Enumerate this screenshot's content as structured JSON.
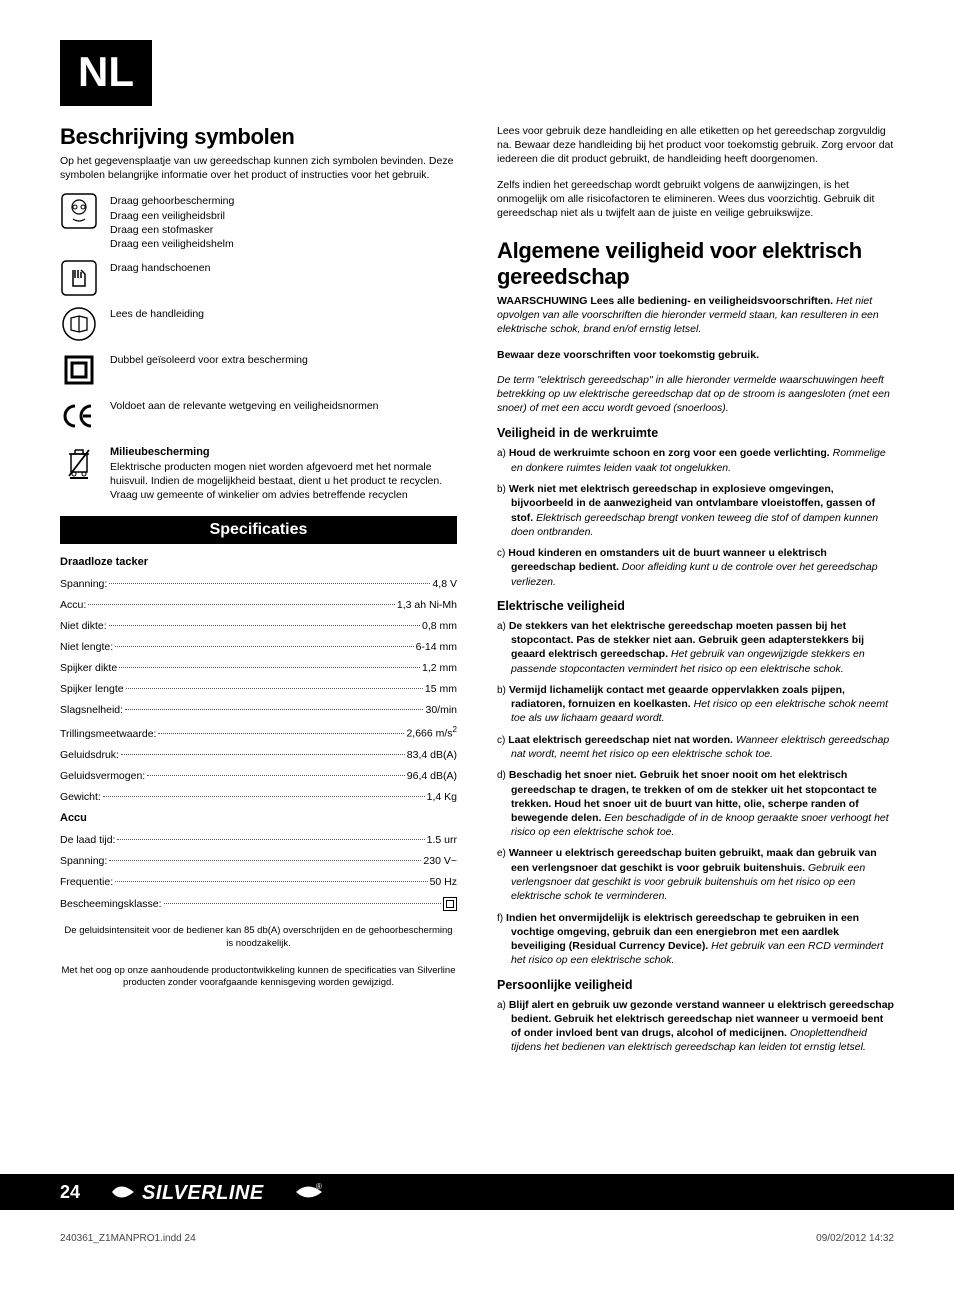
{
  "badge": "NL",
  "left": {
    "symbols_title": "Beschrijving symbolen",
    "symbols_intro": "Op het gegevensplaatje van uw gereedschap kunnen zich symbolen bevinden. Deze symbolen belangrijke informatie over het product of instructies voor het gebruik.",
    "rows": [
      {
        "lines": [
          "Draag gehoorbescherming",
          "Draag een veiligheidsbril",
          "Draag een stofmasker",
          "Draag een veiligheidshelm"
        ],
        "icon": "ppe"
      },
      {
        "lines": [
          "Draag handschoenen"
        ],
        "icon": "gloves"
      },
      {
        "lines": [
          "Lees de handleiding"
        ],
        "icon": "manual"
      },
      {
        "lines": [
          "Dubbel geïsoleerd voor extra bescherming"
        ],
        "icon": "class2"
      },
      {
        "lines": [
          "Voldoet aan de relevante wetgeving en veiligheidsnormen"
        ],
        "icon": "ce"
      },
      {
        "head": "Milieubescherming",
        "lines": [
          "Elektrische producten mogen niet worden afgevoerd met het normale huisvuil. Indien de mogelijkheid bestaat, dient u het product te recyclen. Vraag uw gemeente of winkelier om advies betreffende recyclen"
        ],
        "icon": "weee"
      }
    ],
    "spec_title": "Specificaties",
    "spec_group1": "Draadloze tacker",
    "specs1": [
      {
        "label": "Spanning:",
        "value": "4,8 V"
      },
      {
        "label": "Accu:",
        "value": "1,3 ah Ni-Mh"
      },
      {
        "label": "Niet dikte:",
        "value": "0,8 mm"
      },
      {
        "label": "Niet lengte:",
        "value": "6-14 mm"
      },
      {
        "label": "Spijker dikte",
        "value": "1,2 mm"
      },
      {
        "label": "Spijker lengte",
        "value": "15 mm"
      },
      {
        "label": "Slagsnelheid:",
        "value": "30/min"
      },
      {
        "label": "Trillingsmeetwaarde:",
        "value": "2,666 m/s²"
      },
      {
        "label": "Geluidsdruk:",
        "value": "83,4 dB(A)"
      },
      {
        "label": "Geluidsvermogen:",
        "value": "96,4 dB(A)"
      },
      {
        "label": "Gewicht:",
        "value": "1,4 Kg"
      }
    ],
    "spec_group2": "Accu",
    "specs2": [
      {
        "label": "De laad tijd:",
        "value": "1.5 urr"
      },
      {
        "label": "Spanning:",
        "value": "230 V~"
      },
      {
        "label": "Frequentie:",
        "value": "50 Hz"
      },
      {
        "label": "Bescheemingsklasse:",
        "value": "__CLASS2__"
      }
    ],
    "note1": "De geluidsintensiteit voor de bediener kan 85 db(A) overschrijden en de gehoorbescherming is noodzakelijk.",
    "note2": "Met het oog op onze aanhoudende productontwikkeling kunnen de specificaties van Silverline producten zonder voorafgaande kennisgeving worden gewijzigd."
  },
  "right": {
    "intro1": "Lees voor gebruik deze handleiding en alle etiketten op het gereedschap zorgvuldig na. Bewaar deze handleiding bij het product voor toekomstig gebruik. Zorg ervoor dat iedereen die dit product gebruikt, de handleiding heeft doorgenomen.",
    "intro2": "Zelfs indien het gereedschap wordt gebruikt volgens de aanwijzingen, is het onmogelijk om alle risicofactoren te elimineren. Wees dus voorzichtig. Gebruik dit gereedschap niet als u twijfelt aan de juiste en veilige gebruikswijze.",
    "title": "Algemene veiligheid voor elektrisch gereedschap",
    "warn_bold": "WAARSCHUWING Lees alle bediening- en veiligheidsvoorschriften.",
    "warn_italic": "Het niet opvolgen van alle voorschriften die hieronder vermeld staan, kan resulteren in een elektrische schok, brand en/of ernstig letsel.",
    "keep": "Bewaar deze voorschriften voor toekomstig gebruik.",
    "term_italic": "De term \"elektrisch gereedschap\" in alle hieronder vermelde waarschuwingen heeft betrekking op uw elektrische gereedschap dat op de stroom is aangesloten (met een snoer) of met een accu wordt gevoed (snoerloos).",
    "sections": [
      {
        "head": "Veiligheid in de werkruimte",
        "items": [
          {
            "letter": "a)",
            "bold": "Houd de werkruimte schoon en zorg voor een goede verlichting.",
            "italic": "Rommelige en donkere ruimtes leiden vaak tot ongelukken."
          },
          {
            "letter": "b)",
            "bold": "Werk niet met elektrisch gereedschap in explosieve omgevingen, bijvoorbeeld in de aanwezigheid van ontvlambare vloeistoffen, gassen of stof.",
            "italic": "Elektrisch gereedschap brengt vonken teweeg die stof of dampen kunnen doen ontbranden."
          },
          {
            "letter": "c)",
            "bold": "Houd kinderen en omstanders uit de buurt wanneer u elektrisch gereedschap bedient.",
            "italic": "Door afleiding kunt u de controle over het gereedschap verliezen."
          }
        ]
      },
      {
        "head": "Elektrische veiligheid",
        "items": [
          {
            "letter": "a)",
            "bold": "De stekkers van het elektrische gereedschap moeten passen bij het stopcontact. Pas de stekker niet aan. Gebruik geen adapterstekkers bij geaard elektrisch gereedschap.",
            "italic": "Het gebruik van ongewijzigde stekkers en passende stopcontacten vermindert het risico op een elektrische schok."
          },
          {
            "letter": "b)",
            "bold": "Vermijd lichamelijk contact met geaarde oppervlakken zoals pijpen, radiatoren, fornuizen en koelkasten.",
            "italic": "Het risico op een elektrische schok neemt toe als uw lichaam geaard wordt."
          },
          {
            "letter": "c)",
            "bold": "Laat elektrisch gereedschap niet nat worden.",
            "italic": "Wanneer elektrisch gereedschap nat wordt, neemt het risico op een elektrische schok toe."
          },
          {
            "letter": "d)",
            "bold": "Beschadig het snoer niet. Gebruik het snoer nooit om het elektrisch gereedschap te dragen, te trekken of om de stekker uit het stopcontact te trekken. Houd het snoer uit de buurt van hitte, olie, scherpe randen of bewegende delen.",
            "italic": "Een beschadigde of in de knoop geraakte snoer verhoogt het risico op een elektrische schok toe."
          },
          {
            "letter": "e)",
            "bold": "Wanneer u elektrisch gereedschap buiten gebruikt, maak dan gebruik van een verlengsnoer dat geschikt is voor gebruik buitenshuis.",
            "italic": "Gebruik een verlengsnoer dat geschikt is voor gebruik buitenshuis om het risico op een elektrische schok te verminderen."
          },
          {
            "letter": "f)",
            "bold": "Indien het onvermijdelijk is elektrisch gereedschap te gebruiken in een vochtige omgeving, gebruik dan een energiebron met een aardlek beveiliging (Residual Currency Device).",
            "italic": "Het gebruik van een RCD vermindert het risico op een elektrische schok."
          }
        ]
      },
      {
        "head": "Persoonlijke veiligheid",
        "items": [
          {
            "letter": "a)",
            "bold": "Blijf alert en gebruik uw gezonde verstand wanneer u elektrisch gereedschap bedient. Gebruik het elektrisch gereedschap niet wanneer u vermoeid bent of onder invloed bent van drugs, alcohol of medicijnen.",
            "italic": "Onoplettendheid tijdens het bedienen van elektrisch gereedschap kan leiden tot ernstig letsel."
          }
        ]
      }
    ]
  },
  "footer": {
    "page": "24",
    "brand": "SILVERLINE",
    "meta_left": "240361_Z1MANPRO1.indd   24",
    "meta_right": "09/02/2012   14:32"
  }
}
